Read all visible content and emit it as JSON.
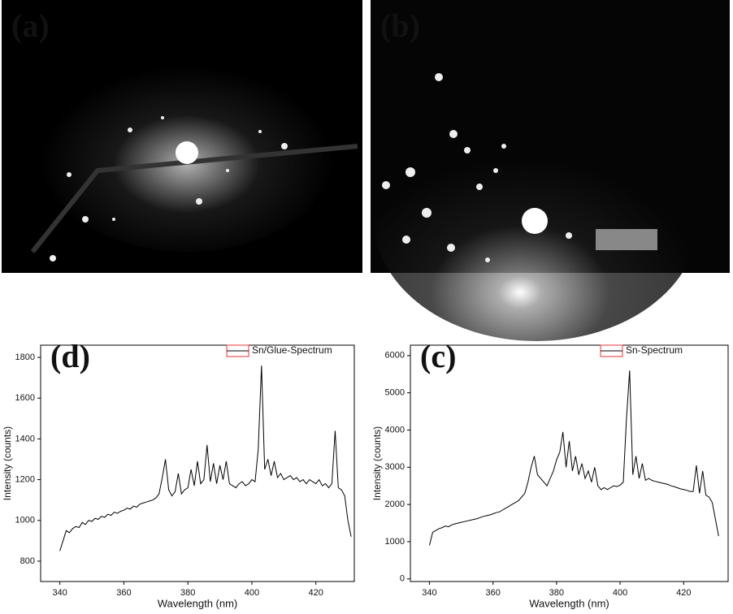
{
  "panels": [
    {
      "label": "(a)"
    },
    {
      "label": "(b)"
    }
  ],
  "chart_data": [
    {
      "type": "line",
      "panel_label": "(d)",
      "x_label": "Wavelength (nm)",
      "y_label": "Intensity (counts)",
      "xlim": [
        334,
        432
      ],
      "xticks": [
        340,
        360,
        380,
        400,
        420
      ],
      "ylim": [
        700,
        1860
      ],
      "yticks": [
        800,
        1000,
        1200,
        1400,
        1600,
        1800
      ],
      "x": [
        340,
        341,
        342,
        343,
        344,
        345,
        346,
        347,
        348,
        349,
        350,
        351,
        352,
        353,
        354,
        355,
        356,
        357,
        358,
        359,
        360,
        361,
        362,
        363,
        364,
        365,
        366,
        367,
        368,
        369,
        370,
        371,
        372,
        373,
        374,
        375,
        376,
        377,
        378,
        379,
        380,
        381,
        382,
        383,
        384,
        385,
        386,
        387,
        388,
        389,
        390,
        391,
        392,
        393,
        394,
        395,
        396,
        397,
        398,
        399,
        400,
        401,
        402,
        403,
        404,
        405,
        406,
        407,
        408,
        409,
        410,
        411,
        412,
        413,
        414,
        415,
        416,
        417,
        418,
        419,
        420,
        421,
        422,
        423,
        424,
        425,
        426,
        427,
        428,
        429,
        430,
        431
      ],
      "series": [
        {
          "name": "Sn/Glue-Spectrum",
          "color": "#000000",
          "values": [
            850,
            900,
            950,
            940,
            960,
            970,
            965,
            990,
            980,
            1000,
            995,
            1010,
            1005,
            1020,
            1015,
            1030,
            1025,
            1040,
            1035,
            1045,
            1050,
            1060,
            1055,
            1070,
            1065,
            1080,
            1085,
            1090,
            1095,
            1100,
            1110,
            1130,
            1210,
            1300,
            1150,
            1120,
            1140,
            1230,
            1130,
            1150,
            1160,
            1250,
            1170,
            1290,
            1180,
            1200,
            1370,
            1190,
            1280,
            1180,
            1270,
            1200,
            1290,
            1180,
            1170,
            1160,
            1180,
            1190,
            1170,
            1180,
            1200,
            1190,
            1350,
            1760,
            1250,
            1300,
            1220,
            1290,
            1210,
            1230,
            1200,
            1210,
            1220,
            1200,
            1210,
            1190,
            1200,
            1180,
            1200,
            1190,
            1180,
            1200,
            1170,
            1180,
            1160,
            1180,
            1440,
            1160,
            1150,
            1120,
            1000,
            920
          ]
        }
      ]
    },
    {
      "type": "line",
      "panel_label": "(c)",
      "x_label": "Wavelength (nm)",
      "y_label": "Intensity (counts)",
      "xlim": [
        334,
        434
      ],
      "xticks": [
        340,
        360,
        380,
        400,
        420
      ],
      "ylim": [
        -70,
        6280
      ],
      "yticks": [
        0,
        1000,
        2000,
        3000,
        4000,
        5000,
        6000
      ],
      "x": [
        340,
        341,
        342,
        343,
        344,
        345,
        346,
        347,
        348,
        349,
        350,
        351,
        352,
        353,
        354,
        355,
        356,
        357,
        358,
        359,
        360,
        361,
        362,
        363,
        364,
        365,
        366,
        367,
        368,
        369,
        370,
        371,
        372,
        373,
        374,
        375,
        376,
        377,
        378,
        379,
        380,
        381,
        382,
        383,
        384,
        385,
        386,
        387,
        388,
        389,
        390,
        391,
        392,
        393,
        394,
        395,
        396,
        397,
        398,
        399,
        400,
        401,
        402,
        403,
        404,
        405,
        406,
        407,
        408,
        409,
        410,
        411,
        412,
        413,
        414,
        415,
        416,
        417,
        418,
        419,
        420,
        421,
        422,
        423,
        424,
        425,
        426,
        427,
        428,
        429,
        430,
        431
      ],
      "series": [
        {
          "name": "Sn-Spectrum",
          "color": "#000000",
          "values": [
            900,
            1250,
            1300,
            1350,
            1380,
            1420,
            1400,
            1450,
            1480,
            1500,
            1520,
            1540,
            1560,
            1580,
            1600,
            1620,
            1650,
            1680,
            1700,
            1720,
            1750,
            1780,
            1800,
            1850,
            1900,
            1950,
            2000,
            2050,
            2100,
            2200,
            2300,
            2600,
            3000,
            3300,
            2800,
            2700,
            2600,
            2500,
            2700,
            2900,
            3200,
            3400,
            3950,
            3000,
            3700,
            2900,
            3300,
            2800,
            3100,
            2700,
            2900,
            2600,
            3000,
            2500,
            2400,
            2450,
            2400,
            2450,
            2500,
            2480,
            2520,
            2600,
            4300,
            5600,
            2800,
            3300,
            2700,
            3100,
            2650,
            2700,
            2650,
            2620,
            2600,
            2580,
            2560,
            2540,
            2500,
            2480,
            2450,
            2420,
            2400,
            2380,
            2350,
            2350,
            3050,
            2300,
            2900,
            2250,
            2200,
            2050,
            1600,
            1150
          ]
        }
      ]
    }
  ]
}
